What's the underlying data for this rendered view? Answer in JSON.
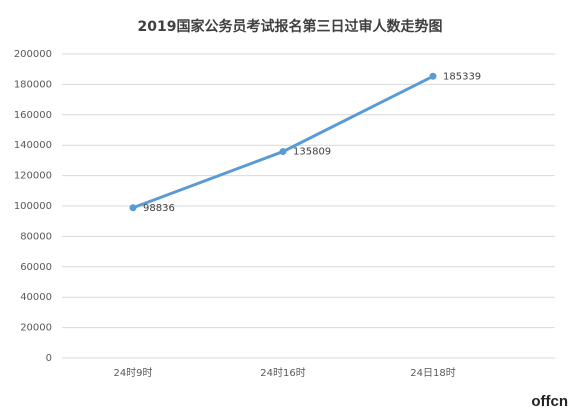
{
  "chart_data": {
    "type": "line",
    "title": "2019国家公务员考试报名第三日过审人数走势图",
    "categories": [
      "24时9时",
      "24时16时",
      "24日18时"
    ],
    "series": [
      {
        "name": "过审人数",
        "color": "#5b9bd5",
        "values": [
          98836,
          135809,
          185339
        ]
      }
    ],
    "ylim": [
      0,
      200000
    ],
    "yticks": [
      0,
      20000,
      40000,
      60000,
      80000,
      100000,
      120000,
      140000,
      160000,
      180000,
      200000
    ],
    "grid": true,
    "watermark": "offcn"
  }
}
